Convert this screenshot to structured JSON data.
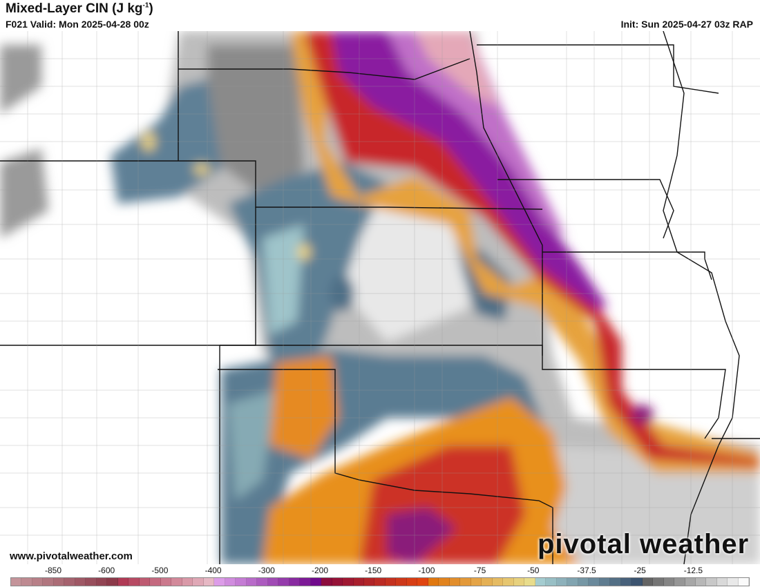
{
  "header": {
    "title": "Mixed-Layer CIN (J kg",
    "title_sup": "-1",
    "title_end": ")",
    "valid": "F021 Valid: Mon 2025-04-28 00z",
    "init": "Init: Sun 2025-04-27 03z RAP"
  },
  "footer": {
    "url": "www.pivotalweather.com",
    "logo": "pivotal weather"
  },
  "colorbar": {
    "ticks": [
      "-850",
      "-600",
      "-500",
      "-400",
      "-300",
      "-200",
      "-150",
      "-100",
      "-75",
      "-50",
      "-37.5",
      "-25",
      "-12.5"
    ],
    "groups": [
      {
        "count": 10,
        "from": "#c4949a",
        "to": "#8c3a4a"
      },
      {
        "count": 9,
        "from": "#b03a55",
        "to": "#e6b8c4"
      },
      {
        "count": 10,
        "from": "#dc9ce8",
        "to": "#700a8c"
      },
      {
        "count": 10,
        "from": "#8c0c3c",
        "to": "#e04410"
      },
      {
        "count": 10,
        "from": "#e07810",
        "to": "#e8dc8c"
      },
      {
        "count": 10,
        "from": "#a4ccd0",
        "to": "#3c5470"
      },
      {
        "count": 10,
        "from": "#646464",
        "to": "#fafafa"
      }
    ]
  },
  "colors": {
    "white": "#ffffff",
    "gray_light": "#d8d8d8",
    "gray_dark": "#7a7a7a",
    "blue": "#5a7a90",
    "teal": "#a8ccd2",
    "yellow": "#e8d080",
    "orange": "#e8901c",
    "red": "#c8282c",
    "purple": "#8a1ca0",
    "pink": "#e4a8b8"
  }
}
